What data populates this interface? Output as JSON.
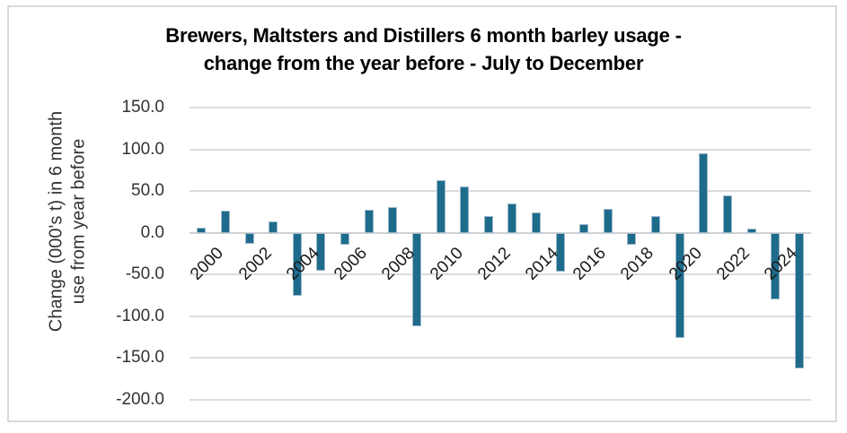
{
  "chart": {
    "title_line1": "Brewers, Maltsters and Distillers 6 month barley usage -",
    "title_line2": "change from the year before - July to December",
    "y_axis_title_line1": "Change (000's t) in 6 month",
    "y_axis_title_line2": "use from year before"
  },
  "colors": {
    "bar_fill": "#1F6B8C",
    "bar_border": "#9CB9CB",
    "gridline": "#DCDCDC",
    "zero_line": "#D0D0D0",
    "chart_border": "#D9D9D9",
    "title_text": "#000000",
    "axis_text": "#333333"
  },
  "chart_data": {
    "type": "bar",
    "title": "Brewers, Maltsters and Distillers 6 month barley usage - change from the year before - July to December",
    "xlabel": "",
    "ylabel": "Change (000's t) in 6 month use from year before",
    "ylim": [
      -200,
      150
    ],
    "ytick_step": 50,
    "ytick_labels": [
      "150.0",
      "100.0",
      "50.0",
      "0.0",
      "-50.0",
      "-100.0",
      "-150.0",
      "-200.0"
    ],
    "grid": true,
    "legend": false,
    "x_labels_shown_every": 2,
    "categories": [
      2000,
      2001,
      2002,
      2003,
      2004,
      2005,
      2006,
      2007,
      2008,
      2009,
      2010,
      2011,
      2012,
      2013,
      2014,
      2015,
      2016,
      2017,
      2018,
      2019,
      2020,
      2021,
      2022,
      2023,
      2024,
      2025
    ],
    "values": [
      6,
      27,
      -13,
      14,
      -75,
      -45,
      -14,
      28,
      31,
      -112,
      63,
      56,
      20,
      35,
      24,
      -47,
      10,
      29,
      -14,
      20,
      -126,
      95,
      45,
      5,
      -80,
      -163
    ]
  }
}
